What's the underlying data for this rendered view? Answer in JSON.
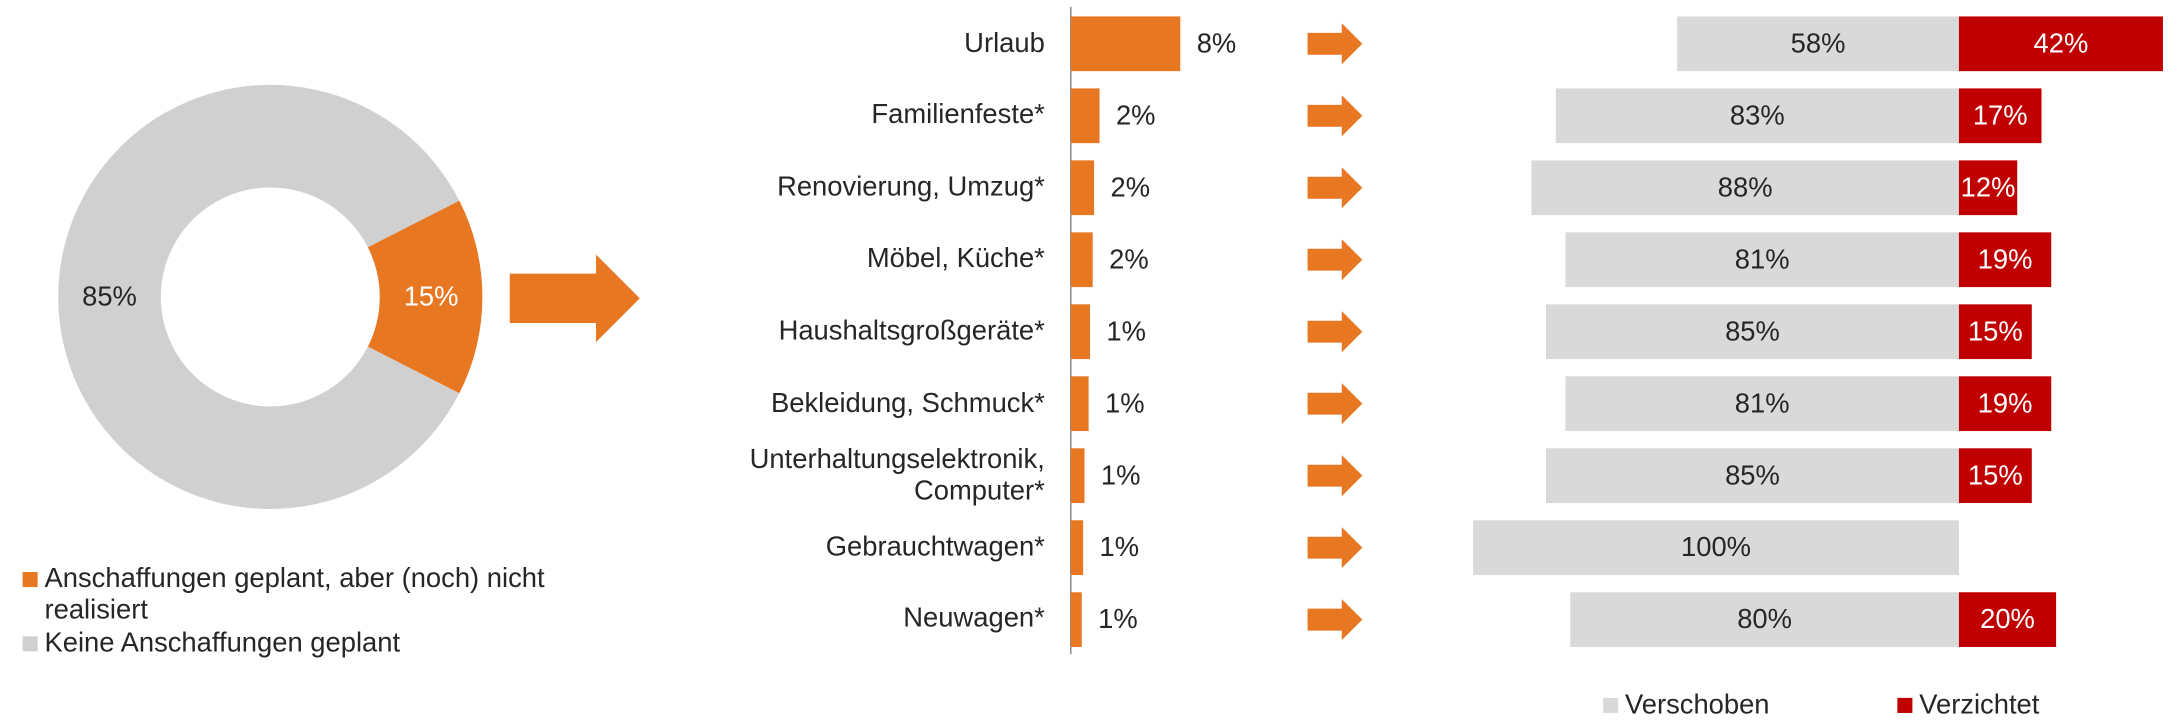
{
  "chart_data": [
    {
      "type": "pie",
      "categories": [
        "Anschaffungen geplant, aber (noch) nicht realisiert",
        "Keine Anschaffungen geplant"
      ],
      "values": [
        15,
        85
      ],
      "value_labels": [
        "15%",
        "85%"
      ],
      "colors": [
        "#e87722",
        "#d0d0d0"
      ]
    },
    {
      "type": "bar",
      "categories": [
        "Urlaub",
        "Familienfeste*",
        "Renovierung, Umzug*",
        "Möbel, Küche*",
        "Haushaltsgroßgeräte*",
        "Bekleidung, Schmuck*",
        "Unterhaltungselektronik, Computer*",
        "Gebrauchtwagen*",
        "Neuwagen*"
      ],
      "values": [
        8,
        2.1,
        1.7,
        1.6,
        1.4,
        1.3,
        1.0,
        0.9,
        0.8
      ],
      "value_labels": [
        "8%",
        "2%",
        "2%",
        "2%",
        "1%",
        "1%",
        "1%",
        "1%",
        "1%"
      ],
      "color": "#e87722"
    },
    {
      "type": "diverging",
      "series": [
        {
          "name": "Verschoben",
          "color": "#d9d9d9",
          "values": [
            58,
            83,
            88,
            81,
            85,
            81,
            85,
            100,
            80
          ],
          "value_labels": [
            "58%",
            "83%",
            "88%",
            "81%",
            "85%",
            "81%",
            "85%",
            "100%",
            "80%"
          ]
        },
        {
          "name": "Verzichtet",
          "color": "#c00000",
          "values": [
            42,
            17,
            12,
            19,
            15,
            19,
            15,
            null,
            20
          ],
          "value_labels": [
            "42%",
            "17%",
            "12%",
            "19%",
            "15%",
            "19%",
            "15%",
            null,
            "20%"
          ]
        }
      ]
    }
  ]
}
